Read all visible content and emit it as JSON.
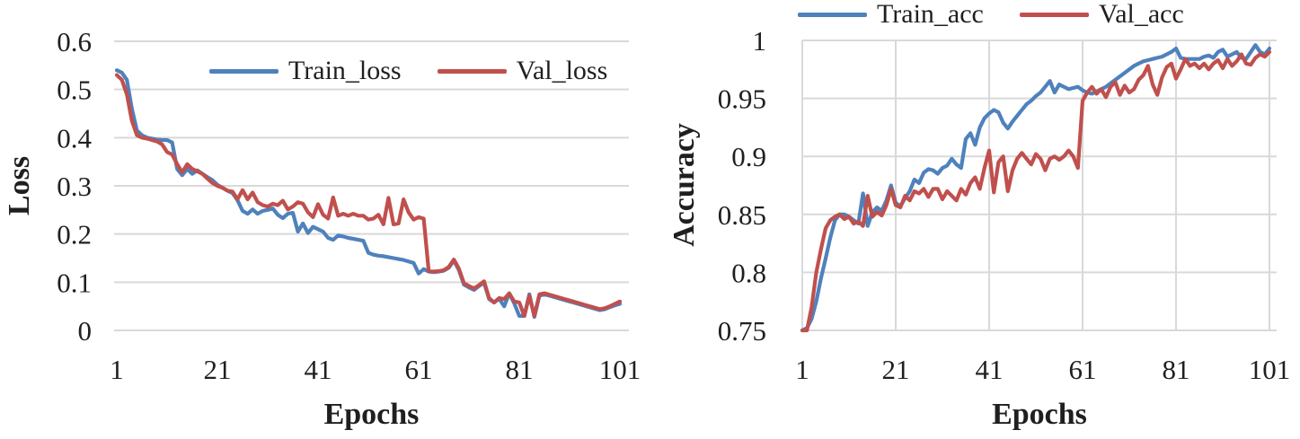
{
  "figure": {
    "background": "#ffffff",
    "gridline_color": "#d9d9d9",
    "text_color": "#1f1f1f"
  },
  "colors": {
    "train_blue": "#4f81bd",
    "val_red": "#c0504d"
  },
  "chart_data": [
    {
      "id": "loss-chart",
      "type": "line",
      "title": "",
      "xlabel": "Epochs",
      "ylabel": "Loss",
      "x_start": 1,
      "x_step": 1,
      "x_ticks": [
        1,
        21,
        41,
        61,
        81,
        101
      ],
      "y_ticks": [
        0,
        0.1,
        0.2,
        0.3,
        0.4,
        0.5,
        0.6
      ],
      "y_tick_labels": [
        "0",
        "0.1",
        "0.2",
        "0.3",
        "0.4",
        "0.5",
        "0.6"
      ],
      "xlim": [
        1,
        103
      ],
      "ylim": [
        0,
        0.6
      ],
      "grid": "horizontal",
      "legend_position": "inside-top-center",
      "series": [
        {
          "name": "Train_loss",
          "color": "#4f81bd",
          "values": [
            0.54,
            0.535,
            0.52,
            0.46,
            0.415,
            0.405,
            0.4,
            0.398,
            0.396,
            0.395,
            0.395,
            0.39,
            0.335,
            0.322,
            0.335,
            0.325,
            0.332,
            0.325,
            0.318,
            0.312,
            0.302,
            0.296,
            0.29,
            0.285,
            0.27,
            0.248,
            0.242,
            0.251,
            0.242,
            0.248,
            0.25,
            0.253,
            0.24,
            0.233,
            0.242,
            0.244,
            0.205,
            0.222,
            0.202,
            0.215,
            0.21,
            0.205,
            0.192,
            0.188,
            0.197,
            0.195,
            0.192,
            0.19,
            0.188,
            0.186,
            0.161,
            0.157,
            0.155,
            0.154,
            0.152,
            0.15,
            0.148,
            0.146,
            0.143,
            0.14,
            0.118,
            0.127,
            0.122,
            0.121,
            0.122,
            0.124,
            0.13,
            0.145,
            0.125,
            0.095,
            0.089,
            0.084,
            0.092,
            0.099,
            0.065,
            0.058,
            0.066,
            0.05,
            0.077,
            0.056,
            0.03,
            0.03,
            0.075,
            0.028,
            0.072,
            0.075,
            0.072,
            0.069,
            0.066,
            0.063,
            0.06,
            0.057,
            0.054,
            0.051,
            0.048,
            0.045,
            0.042,
            0.044,
            0.048,
            0.052,
            0.055
          ]
        },
        {
          "name": "Val_loss",
          "color": "#c0504d",
          "values": [
            0.53,
            0.52,
            0.49,
            0.435,
            0.405,
            0.4,
            0.398,
            0.395,
            0.392,
            0.386,
            0.37,
            0.365,
            0.345,
            0.328,
            0.345,
            0.335,
            0.33,
            0.325,
            0.315,
            0.306,
            0.3,
            0.296,
            0.29,
            0.288,
            0.272,
            0.291,
            0.272,
            0.286,
            0.266,
            0.26,
            0.257,
            0.263,
            0.26,
            0.269,
            0.251,
            0.257,
            0.266,
            0.263,
            0.245,
            0.235,
            0.262,
            0.24,
            0.232,
            0.276,
            0.238,
            0.242,
            0.238,
            0.242,
            0.238,
            0.238,
            0.23,
            0.232,
            0.24,
            0.22,
            0.275,
            0.22,
            0.222,
            0.272,
            0.245,
            0.23,
            0.235,
            0.232,
            0.123,
            0.122,
            0.123,
            0.125,
            0.132,
            0.147,
            0.128,
            0.098,
            0.092,
            0.087,
            0.094,
            0.102,
            0.067,
            0.058,
            0.067,
            0.065,
            0.077,
            0.06,
            0.058,
            0.03,
            0.072,
            0.03,
            0.075,
            0.077,
            0.074,
            0.071,
            0.068,
            0.065,
            0.062,
            0.059,
            0.056,
            0.053,
            0.05,
            0.047,
            0.044,
            0.046,
            0.05,
            0.055,
            0.06
          ]
        }
      ]
    },
    {
      "id": "accuracy-chart",
      "type": "line",
      "title": "",
      "xlabel": "Epochs",
      "ylabel": "Accuracy",
      "x_start": 1,
      "x_step": 1,
      "x_ticks": [
        1,
        21,
        41,
        61,
        81,
        101
      ],
      "y_ticks": [
        0.75,
        0.8,
        0.85,
        0.9,
        0.95,
        1
      ],
      "y_tick_labels": [
        "0.75",
        "0.8",
        "0.85",
        "0.9",
        "0.95",
        "1"
      ],
      "xlim": [
        1,
        103
      ],
      "ylim": [
        0.75,
        1.0
      ],
      "grid": "both",
      "legend_position": "top",
      "series": [
        {
          "name": "Train_acc",
          "color": "#4f81bd",
          "values": [
            0.75,
            0.752,
            0.76,
            0.775,
            0.795,
            0.812,
            0.83,
            0.845,
            0.85,
            0.85,
            0.848,
            0.845,
            0.842,
            0.868,
            0.84,
            0.852,
            0.856,
            0.853,
            0.862,
            0.875,
            0.86,
            0.857,
            0.864,
            0.87,
            0.88,
            0.877,
            0.886,
            0.889,
            0.888,
            0.885,
            0.89,
            0.892,
            0.898,
            0.893,
            0.89,
            0.915,
            0.92,
            0.91,
            0.925,
            0.933,
            0.937,
            0.94,
            0.938,
            0.929,
            0.924,
            0.93,
            0.935,
            0.94,
            0.945,
            0.948,
            0.952,
            0.955,
            0.96,
            0.965,
            0.955,
            0.962,
            0.96,
            0.958,
            0.959,
            0.96,
            0.957,
            0.955,
            0.954,
            0.956,
            0.958,
            0.96,
            0.963,
            0.966,
            0.969,
            0.972,
            0.975,
            0.978,
            0.98,
            0.982,
            0.983,
            0.984,
            0.985,
            0.986,
            0.988,
            0.99,
            0.993,
            0.985,
            0.984,
            0.984,
            0.984,
            0.984,
            0.986,
            0.987,
            0.985,
            0.99,
            0.992,
            0.986,
            0.988,
            0.99,
            0.985,
            0.984,
            0.99,
            0.996,
            0.99,
            0.988,
            0.993
          ]
        },
        {
          "name": "Val_acc",
          "color": "#c0504d",
          "values": [
            0.75,
            0.75,
            0.77,
            0.8,
            0.82,
            0.838,
            0.845,
            0.848,
            0.85,
            0.846,
            0.848,
            0.842,
            0.844,
            0.84,
            0.866,
            0.848,
            0.852,
            0.849,
            0.858,
            0.872,
            0.858,
            0.856,
            0.866,
            0.862,
            0.87,
            0.868,
            0.872,
            0.865,
            0.872,
            0.872,
            0.863,
            0.87,
            0.866,
            0.862,
            0.872,
            0.867,
            0.877,
            0.882,
            0.872,
            0.89,
            0.905,
            0.869,
            0.895,
            0.9,
            0.87,
            0.888,
            0.898,
            0.903,
            0.898,
            0.893,
            0.902,
            0.898,
            0.888,
            0.898,
            0.9,
            0.897,
            0.9,
            0.905,
            0.9,
            0.89,
            0.948,
            0.955,
            0.96,
            0.954,
            0.958,
            0.951,
            0.96,
            0.964,
            0.953,
            0.961,
            0.955,
            0.958,
            0.966,
            0.97,
            0.978,
            0.962,
            0.953,
            0.968,
            0.977,
            0.98,
            0.967,
            0.975,
            0.984,
            0.978,
            0.98,
            0.976,
            0.98,
            0.975,
            0.98,
            0.983,
            0.976,
            0.984,
            0.978,
            0.982,
            0.988,
            0.98,
            0.979,
            0.985,
            0.988,
            0.986,
            0.99
          ]
        }
      ]
    }
  ]
}
